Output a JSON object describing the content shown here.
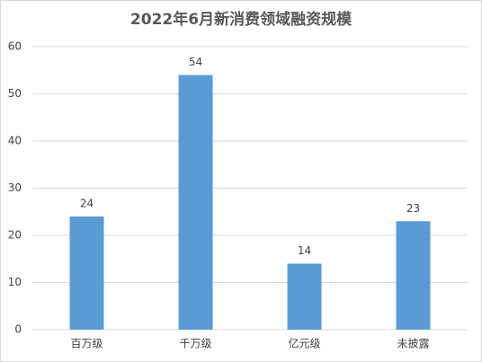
{
  "chart_data": {
    "type": "bar",
    "title": "2022年6月新消费领域融资规模",
    "categories": [
      "百万级",
      "千万级",
      "亿元级",
      "未披露"
    ],
    "values": [
      24,
      54,
      14,
      23
    ],
    "color": "#5b9bd5",
    "ylim": [
      0,
      60
    ],
    "yticks": [
      0,
      10,
      20,
      30,
      40,
      50,
      60
    ],
    "grid": true
  }
}
